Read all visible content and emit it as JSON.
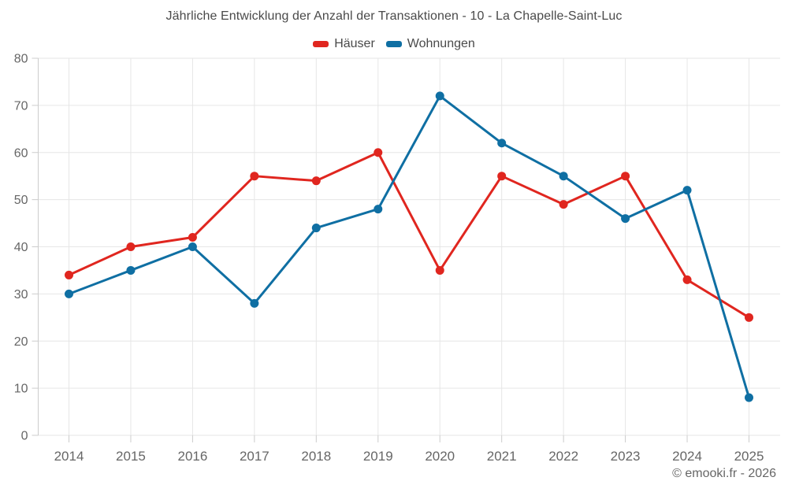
{
  "title": "Jährliche Entwicklung der Anzahl der Transaktionen - 10 - La Chapelle-Saint-Luc",
  "footer": "© emooki.fr - 2026",
  "colors": {
    "background": "#ffffff",
    "grid": "#e6e6e6",
    "axis": "#cccccc",
    "tick_label": "#666666",
    "title_text": "#4a4a4a",
    "legend_text": "#4a4a4a",
    "hauser_red": "#e0261f",
    "wohnungen_blue": "#0f6fa3"
  },
  "chart_data": {
    "type": "line",
    "title": "Jährliche Entwicklung der Anzahl der Transaktionen - 10 - La Chapelle-Saint-Luc",
    "categories": [
      "2014",
      "2015",
      "2016",
      "2017",
      "2018",
      "2019",
      "2020",
      "2021",
      "2022",
      "2023",
      "2024",
      "2025"
    ],
    "series": [
      {
        "name": "Häuser",
        "color": "#e0261f",
        "values": [
          34,
          40,
          42,
          55,
          54,
          60,
          35,
          55,
          49,
          55,
          33,
          25
        ]
      },
      {
        "name": "Wohnungen",
        "color": "#0f6fa3",
        "values": [
          30,
          35,
          40,
          28,
          44,
          48,
          72,
          62,
          55,
          46,
          52,
          8
        ]
      }
    ],
    "xlabel": "",
    "ylabel": "",
    "ylim": [
      0,
      80
    ],
    "ytick_step": 10,
    "grid": true,
    "legend_position": "top"
  }
}
